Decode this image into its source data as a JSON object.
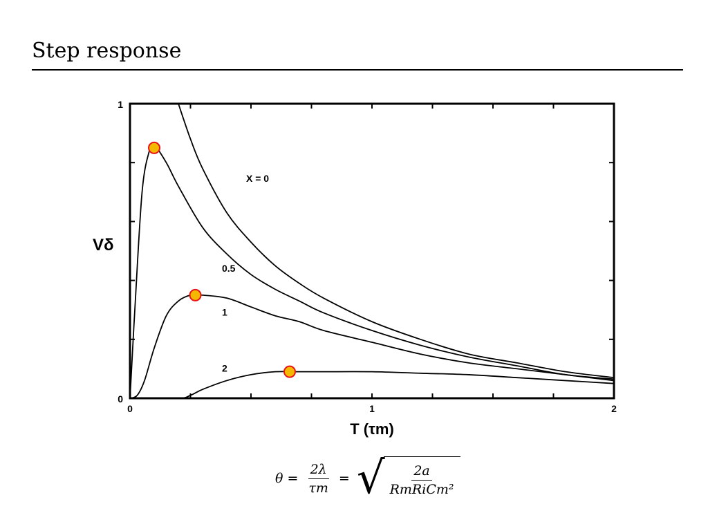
{
  "title": "Step response",
  "formula": {
    "lhs": "θ",
    "eq1": "=",
    "frac_num": "2λ",
    "frac_den": "τm",
    "eq2": "=",
    "sqrt_num": "2a",
    "sqrt_den": "RmRiCm²"
  },
  "chart_data": {
    "type": "line",
    "xlabel": "T (τm)",
    "ylabel": "Vδ",
    "xlim": [
      0,
      2
    ],
    "ylim": [
      0,
      1
    ],
    "x_ticks": [
      "0",
      "1",
      "2"
    ],
    "y_ticks": [
      "0",
      "1"
    ],
    "grid": false,
    "series": [
      {
        "name": "X = 0",
        "label_at": [
          0.48,
          0.735
        ],
        "x": [
          0.2,
          0.25,
          0.3,
          0.4,
          0.5,
          0.6,
          0.7,
          0.8,
          1.0,
          1.2,
          1.4,
          1.6,
          1.8,
          2.0
        ],
        "y": [
          1.0,
          0.88,
          0.78,
          0.63,
          0.53,
          0.45,
          0.39,
          0.34,
          0.26,
          0.2,
          0.15,
          0.12,
          0.09,
          0.07
        ]
      },
      {
        "name": "0.5",
        "label_at": [
          0.38,
          0.43
        ],
        "x": [
          0.0,
          0.02,
          0.05,
          0.08,
          0.1,
          0.15,
          0.2,
          0.3,
          0.4,
          0.5,
          0.6,
          0.7,
          0.8,
          1.0,
          1.2,
          1.4,
          1.6,
          1.8,
          2.0
        ],
        "y": [
          0.0,
          0.3,
          0.7,
          0.84,
          0.86,
          0.8,
          0.72,
          0.58,
          0.49,
          0.42,
          0.37,
          0.33,
          0.29,
          0.23,
          0.18,
          0.14,
          0.11,
          0.08,
          0.065
        ]
      },
      {
        "name": "1",
        "label_at": [
          0.38,
          0.28
        ],
        "x": [
          0.0,
          0.03,
          0.06,
          0.1,
          0.15,
          0.2,
          0.25,
          0.3,
          0.4,
          0.5,
          0.6,
          0.7,
          0.8,
          1.0,
          1.2,
          1.4,
          1.6,
          1.8,
          2.0
        ],
        "y": [
          0.0,
          0.01,
          0.06,
          0.17,
          0.28,
          0.33,
          0.35,
          0.35,
          0.34,
          0.31,
          0.28,
          0.26,
          0.23,
          0.19,
          0.15,
          0.12,
          0.1,
          0.08,
          0.06
        ]
      },
      {
        "name": "2",
        "label_at": [
          0.38,
          0.09
        ],
        "x": [
          0.0,
          0.2,
          0.25,
          0.3,
          0.4,
          0.5,
          0.6,
          0.7,
          0.8,
          1.0,
          1.2,
          1.4,
          1.6,
          1.8,
          2.0
        ],
        "y": [
          0.0,
          0.0,
          0.01,
          0.03,
          0.06,
          0.08,
          0.09,
          0.09,
          0.09,
          0.09,
          0.085,
          0.08,
          0.07,
          0.06,
          0.05
        ]
      }
    ],
    "peak_markers": [
      {
        "x": 0.1,
        "y": 0.85
      },
      {
        "x": 0.27,
        "y": 0.35
      },
      {
        "x": 0.66,
        "y": 0.09
      }
    ],
    "marker_fill": "#f5b800",
    "marker_edge": "#e8141b"
  }
}
